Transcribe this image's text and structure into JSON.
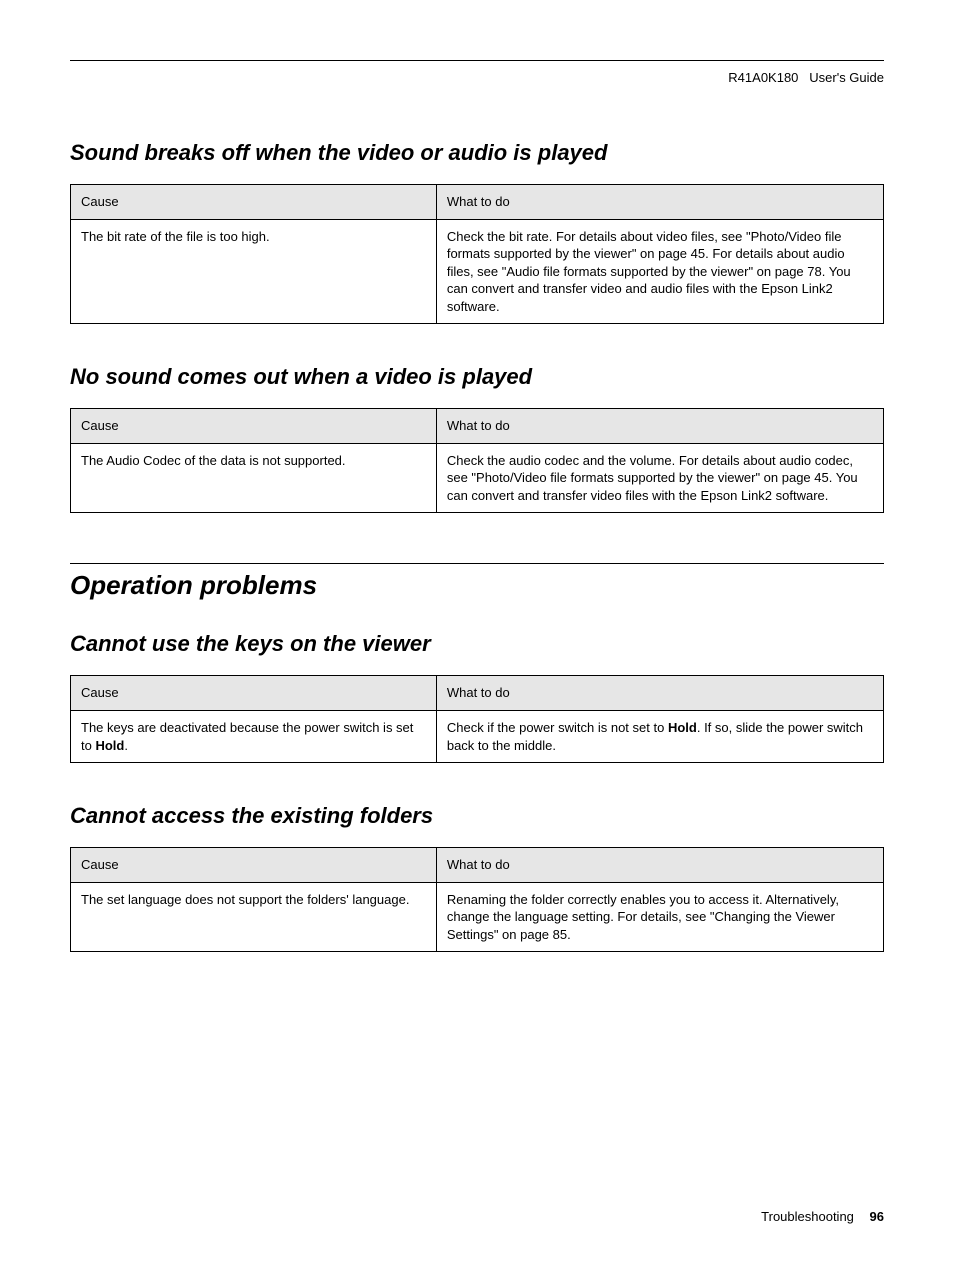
{
  "doc": {
    "header_id": "R41A0K180",
    "header_guide": "User's Guide",
    "footer_section": "Troubleshooting",
    "footer_page": "96",
    "colors": {
      "page_bg": "#ffffff",
      "text": "#000000",
      "table_border": "#000000",
      "table_header_bg": "#e6e6e6",
      "rule": "#000000"
    }
  },
  "sections": [
    {
      "level": "h2",
      "title": "Sound breaks off when the video or audio is played",
      "table": {
        "col_cause": "Cause",
        "col_action": "What to do",
        "rows": [
          {
            "cause": "The bit rate of the file is too high.",
            "action": "Check the bit rate. For details about video files, see \"Photo/Video file formats supported by the viewer\" on page 45. For details about audio files, see \"Audio file formats supported by the viewer\" on page 78. You can convert and transfer video and audio files with the Epson Link2 software."
          }
        ]
      }
    },
    {
      "level": "h2",
      "title": "No sound comes out when a video is played",
      "table": {
        "col_cause": "Cause",
        "col_action": "What to do",
        "rows": [
          {
            "cause": "The Audio Codec of the data is not supported.",
            "action": "Check the audio codec and the volume. For details about audio codec, see \"Photo/Video file formats supported by the viewer\" on page 45. You can convert and transfer video files with the Epson Link2 software."
          }
        ]
      }
    },
    {
      "level": "h1",
      "title": "Operation problems"
    },
    {
      "level": "h2",
      "title": "Cannot use the keys on the viewer",
      "table": {
        "col_cause": "Cause",
        "col_action": "What to do",
        "rows": [
          {
            "cause_pre": "The keys are deactivated because the power switch is set to ",
            "cause_bold": "Hold",
            "cause_post": ".",
            "action_pre": "Check if the power switch is not set to ",
            "action_bold": "Hold",
            "action_post": ". If so, slide the power switch back to the middle."
          }
        ]
      }
    },
    {
      "level": "h2",
      "title": "Cannot access the existing folders",
      "table": {
        "col_cause": "Cause",
        "col_action": "What to do",
        "rows": [
          {
            "cause": "The set language does not support the folders' language.",
            "action": "Renaming the folder correctly enables you to access it. Alternatively, change the language setting. For details, see \"Changing the Viewer Settings\" on page 85."
          }
        ]
      }
    }
  ]
}
